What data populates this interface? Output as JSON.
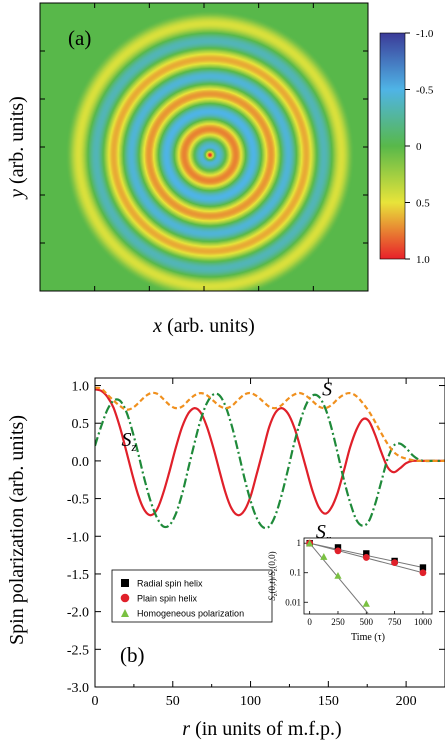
{
  "chart_data": [
    {
      "type": "heatmap",
      "panel_label": "(a)",
      "xlabel_var": "x",
      "xlabel_rest": " (arb. units)",
      "ylabel_var": "y",
      "ylabel_rest": " (arb. units)",
      "colorbar": {
        "ticks": [
          "-1.0",
          "-0.5",
          "0",
          "0.5",
          "1.0"
        ],
        "tick_values": [
          -1.0,
          -0.5,
          0,
          0.5,
          1.0
        ],
        "colors": [
          "#3b3b98",
          "#4fb4e6",
          "#58b84a",
          "#e8e43a",
          "#e8202a"
        ]
      },
      "pattern": "concentric rings, positive (red/yellow) at center, alternating with negative (blue), decaying toward edge",
      "rings": [
        {
          "r": 0.0,
          "value": 1.0
        },
        {
          "r": 0.04,
          "value": -0.45
        },
        {
          "r": 0.12,
          "value": 0.75
        },
        {
          "r": 0.2,
          "value": -0.5
        },
        {
          "r": 0.28,
          "value": 0.7
        },
        {
          "r": 0.36,
          "value": -0.45
        },
        {
          "r": 0.44,
          "value": 0.65
        },
        {
          "r": 0.52,
          "value": -0.35
        },
        {
          "r": 0.6,
          "value": 0.45
        },
        {
          "r": 0.66,
          "value": 0.0
        }
      ],
      "background_value": 0.0
    },
    {
      "type": "line",
      "panel_label": "(b)",
      "ylabel": "Spin polarization (arb. units)",
      "xlabel_var": "r",
      "xlabel_rest": " (in units of m.f.p.)",
      "xlim": [
        0,
        225
      ],
      "ylim": [
        -3.0,
        1.1
      ],
      "xticks": [
        0,
        50,
        100,
        150,
        200
      ],
      "yticks": [
        1.0,
        0.5,
        0.0,
        -0.5,
        -1.0,
        -1.5,
        -2.0,
        -2.5,
        -3.0
      ],
      "ytick_labels": [
        "1.0",
        "0.5",
        "0.0",
        "-0.5",
        "-1.0",
        "-1.5",
        "-2.0",
        "-2.5",
        "-3.0"
      ],
      "series": [
        {
          "name": "S_z",
          "color": "#e0202a",
          "style": "solid",
          "x": [
            0,
            4,
            8,
            12,
            16,
            20,
            24,
            28,
            32,
            36,
            40,
            44,
            48,
            52,
            56,
            60,
            64,
            68,
            72,
            76,
            80,
            84,
            88,
            92,
            96,
            100,
            104,
            108,
            112,
            116,
            120,
            124,
            128,
            132,
            136,
            140,
            144,
            148,
            152,
            156,
            160,
            164,
            168,
            172,
            176,
            180,
            184,
            188,
            192,
            196,
            200,
            204,
            208,
            212,
            216,
            220,
            225
          ],
          "y": [
            0.95,
            0.93,
            0.85,
            0.7,
            0.45,
            0.14,
            -0.18,
            -0.47,
            -0.66,
            -0.72,
            -0.64,
            -0.42,
            -0.13,
            0.18,
            0.45,
            0.63,
            0.7,
            0.64,
            0.45,
            0.18,
            -0.13,
            -0.43,
            -0.64,
            -0.72,
            -0.66,
            -0.47,
            -0.17,
            0.14,
            0.45,
            0.64,
            0.7,
            0.63,
            0.45,
            0.18,
            -0.12,
            -0.41,
            -0.62,
            -0.7,
            -0.62,
            -0.42,
            -0.13,
            0.18,
            0.41,
            0.55,
            0.53,
            0.35,
            0.12,
            -0.08,
            -0.15,
            -0.1,
            -0.03,
            0.0,
            0.0,
            0.0,
            0.0,
            0.0,
            0.0
          ]
        },
        {
          "name": "S_r",
          "color": "#1f8a3a",
          "style": "dashdot",
          "x": [
            0,
            4,
            8,
            12,
            16,
            20,
            24,
            28,
            32,
            36,
            40,
            44,
            48,
            52,
            56,
            60,
            64,
            68,
            72,
            76,
            80,
            84,
            88,
            92,
            96,
            100,
            104,
            108,
            112,
            116,
            120,
            124,
            128,
            132,
            136,
            140,
            144,
            148,
            152,
            156,
            160,
            164,
            168,
            172,
            176,
            180,
            184,
            188,
            192,
            196,
            200,
            204,
            208,
            212,
            216,
            220,
            225
          ],
          "y": [
            0.2,
            0.46,
            0.68,
            0.8,
            0.8,
            0.66,
            0.4,
            0.08,
            -0.26,
            -0.55,
            -0.76,
            -0.87,
            -0.85,
            -0.7,
            -0.44,
            -0.1,
            0.24,
            0.55,
            0.77,
            0.88,
            0.87,
            0.72,
            0.46,
            0.13,
            -0.22,
            -0.53,
            -0.76,
            -0.88,
            -0.87,
            -0.72,
            -0.45,
            -0.12,
            0.23,
            0.53,
            0.76,
            0.87,
            0.85,
            0.7,
            0.44,
            0.1,
            -0.25,
            -0.55,
            -0.78,
            -0.86,
            -0.8,
            -0.58,
            -0.28,
            0.02,
            0.2,
            0.23,
            0.17,
            0.08,
            0.02,
            0.0,
            0.0,
            0.0,
            0.0
          ]
        },
        {
          "name": "S",
          "color": "#f0901e",
          "style": "dashed",
          "x": [
            0,
            4,
            8,
            12,
            16,
            20,
            24,
            28,
            32,
            36,
            40,
            44,
            48,
            52,
            56,
            60,
            64,
            68,
            72,
            76,
            80,
            84,
            88,
            92,
            96,
            100,
            104,
            108,
            112,
            116,
            120,
            124,
            128,
            132,
            136,
            140,
            144,
            148,
            152,
            156,
            160,
            164,
            168,
            172,
            176,
            180,
            184,
            188,
            192,
            196,
            200,
            204,
            208,
            212,
            216,
            220,
            225
          ],
          "y": [
            0.97,
            0.96,
            0.88,
            0.8,
            0.73,
            0.68,
            0.7,
            0.77,
            0.85,
            0.9,
            0.89,
            0.82,
            0.74,
            0.7,
            0.72,
            0.8,
            0.87,
            0.9,
            0.87,
            0.8,
            0.73,
            0.7,
            0.73,
            0.81,
            0.88,
            0.9,
            0.86,
            0.79,
            0.72,
            0.7,
            0.74,
            0.82,
            0.88,
            0.9,
            0.86,
            0.79,
            0.72,
            0.7,
            0.74,
            0.82,
            0.88,
            0.9,
            0.86,
            0.77,
            0.66,
            0.52,
            0.37,
            0.23,
            0.12,
            0.06,
            0.03,
            0.01,
            0.0,
            0.0,
            0.0,
            0.0,
            0.0
          ]
        }
      ],
      "curve_labels": [
        {
          "base": "S",
          "sub": "z",
          "x": 17,
          "y": 0.2
        },
        {
          "base": "S",
          "sub": "r",
          "x": 142,
          "y": -1.02
        },
        {
          "base": "S",
          "sub": "",
          "x": 146,
          "y": 0.87
        }
      ],
      "inset": {
        "type": "scatter",
        "xlabel": "Time (τ)",
        "ylabel": "S_z(0,t)/S_z(0,0)",
        "yscale": "log",
        "xlim": [
          -50,
          1080
        ],
        "ylim": [
          0.004,
          1.5
        ],
        "xticks": [
          0,
          250,
          500,
          750,
          1000
        ],
        "yticks": [
          1,
          0.1,
          0.01
        ],
        "ytick_labels": [
          "1",
          "0.1",
          "0.01"
        ],
        "series": [
          {
            "name": "Radial spin helix",
            "marker": "square",
            "color": "#000000",
            "x": [
              0,
              250,
              500,
              750,
              1000
            ],
            "y": [
              1.0,
              0.72,
              0.45,
              0.25,
              0.15
            ],
            "fit": [
              [
                0,
                1.0
              ],
              [
                1000,
                0.15
              ]
            ]
          },
          {
            "name": "Plain spin helix",
            "marker": "circle",
            "color": "#e0202a",
            "x": [
              0,
              250,
              500,
              750,
              1000
            ],
            "y": [
              1.0,
              0.55,
              0.33,
              0.22,
              0.1
            ],
            "fit": [
              [
                0,
                1.0
              ],
              [
                1000,
                0.1
              ]
            ]
          },
          {
            "name": "Homogeneous polarization",
            "marker": "triangle",
            "color": "#7ac142",
            "x": [
              0,
              125,
              250,
              500
            ],
            "y": [
              1.0,
              0.35,
              0.08,
              0.009
            ],
            "fit": [
              [
                0,
                1.0
              ],
              [
                520,
                0.004
              ]
            ]
          }
        ]
      }
    }
  ]
}
